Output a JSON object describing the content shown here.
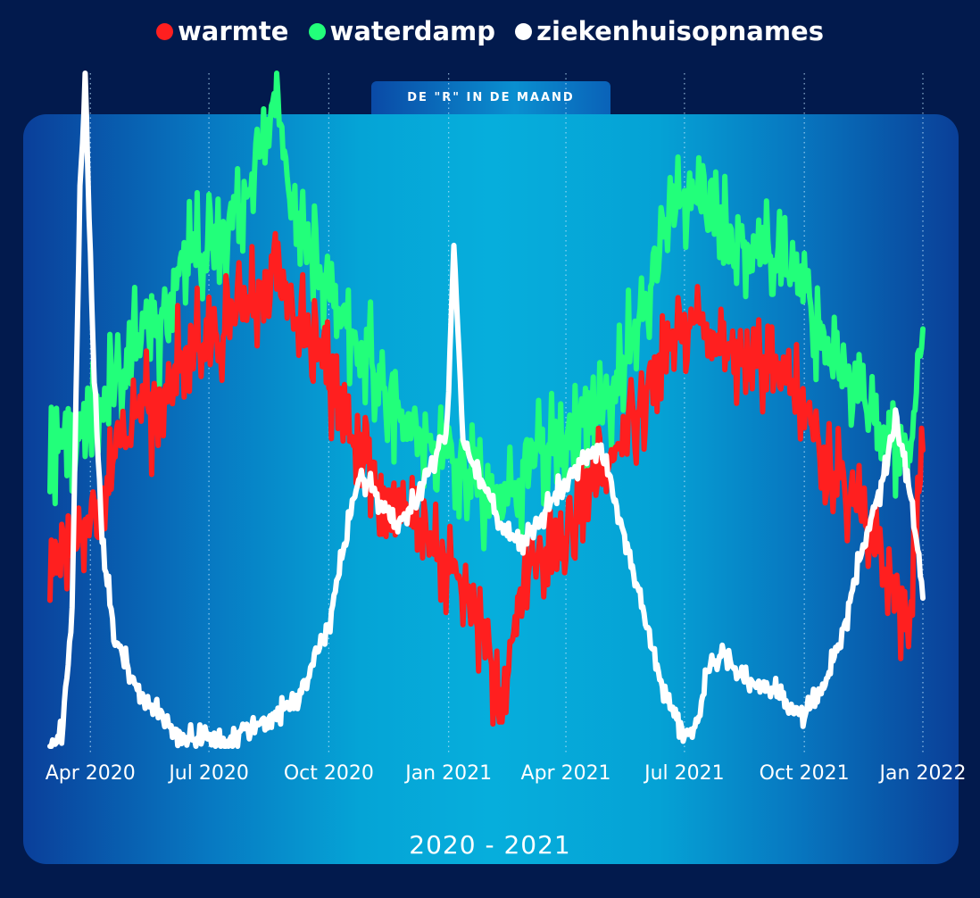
{
  "legend": {
    "items": [
      {
        "label": "warmte",
        "color": "#ff1f1f"
      },
      {
        "label": "waterdamp",
        "color": "#22ff7a"
      },
      {
        "label": "ziekenhuisopnames",
        "color": "#ffffff"
      }
    ]
  },
  "tab_label": "DE \"R\" IN DE MAAND",
  "period_label": "2020 - 2021",
  "chart_data": {
    "type": "line",
    "x_axis": {
      "type": "date",
      "range": [
        "2020-03-01",
        "2021-12-31"
      ],
      "ticks": [
        {
          "date": "2020-04-01",
          "label": "Apr 2020"
        },
        {
          "date": "2020-07-01",
          "label": "Jul 2020"
        },
        {
          "date": "2020-10-01",
          "label": "Oct 2020"
        },
        {
          "date": "2021-01-01",
          "label": "Jan 2021"
        },
        {
          "date": "2021-04-01",
          "label": "Apr 2021"
        },
        {
          "date": "2021-07-01",
          "label": "Jul 2021"
        },
        {
          "date": "2021-10-01",
          "label": "Oct 2021"
        },
        {
          "date": "2022-01-01",
          "label": "Jan 2022"
        }
      ],
      "gridlines": "dotted vertical at ticks"
    },
    "y_axis": {
      "visible": false,
      "range": [
        0,
        100
      ]
    },
    "series": [
      {
        "name": "warmte",
        "color": "#ff1f1f",
        "points": [
          [
            "2020-03-01",
            24
          ],
          [
            "2020-03-10",
            32
          ],
          [
            "2020-03-20",
            30
          ],
          [
            "2020-03-31",
            33
          ],
          [
            "2020-04-10",
            38
          ],
          [
            "2020-04-20",
            43
          ],
          [
            "2020-04-30",
            47
          ],
          [
            "2020-05-10",
            52
          ],
          [
            "2020-05-20",
            48
          ],
          [
            "2020-05-31",
            55
          ],
          [
            "2020-06-10",
            58
          ],
          [
            "2020-06-20",
            60
          ],
          [
            "2020-06-30",
            59
          ],
          [
            "2020-07-10",
            62
          ],
          [
            "2020-07-20",
            64
          ],
          [
            "2020-07-31",
            66
          ],
          [
            "2020-08-10",
            68
          ],
          [
            "2020-08-20",
            74
          ],
          [
            "2020-08-31",
            67
          ],
          [
            "2020-09-10",
            62
          ],
          [
            "2020-09-20",
            58
          ],
          [
            "2020-09-30",
            55
          ],
          [
            "2020-10-10",
            49
          ],
          [
            "2020-10-20",
            45
          ],
          [
            "2020-10-31",
            42
          ],
          [
            "2020-11-10",
            38
          ],
          [
            "2020-11-20",
            36
          ],
          [
            "2020-11-30",
            34
          ],
          [
            "2020-12-10",
            32
          ],
          [
            "2020-12-20",
            30
          ],
          [
            "2020-12-31",
            28
          ],
          [
            "2021-01-10",
            24
          ],
          [
            "2021-01-20",
            20
          ],
          [
            "2021-01-31",
            16
          ],
          [
            "2021-02-10",
            2
          ],
          [
            "2021-02-20",
            18
          ],
          [
            "2021-02-28",
            26
          ],
          [
            "2021-03-10",
            28
          ],
          [
            "2021-03-20",
            30
          ],
          [
            "2021-03-31",
            31
          ],
          [
            "2021-04-10",
            34
          ],
          [
            "2021-04-20",
            38
          ],
          [
            "2021-04-30",
            40
          ],
          [
            "2021-05-10",
            44
          ],
          [
            "2021-05-20",
            48
          ],
          [
            "2021-05-31",
            52
          ],
          [
            "2021-06-10",
            57
          ],
          [
            "2021-06-20",
            60
          ],
          [
            "2021-06-30",
            62
          ],
          [
            "2021-07-10",
            63
          ],
          [
            "2021-07-20",
            62
          ],
          [
            "2021-07-31",
            60
          ],
          [
            "2021-08-10",
            58
          ],
          [
            "2021-08-20",
            57
          ],
          [
            "2021-08-31",
            56
          ],
          [
            "2021-09-10",
            55
          ],
          [
            "2021-09-20",
            53
          ],
          [
            "2021-09-30",
            51
          ],
          [
            "2021-10-10",
            46
          ],
          [
            "2021-10-20",
            42
          ],
          [
            "2021-10-31",
            39
          ],
          [
            "2021-11-10",
            35
          ],
          [
            "2021-11-20",
            31
          ],
          [
            "2021-11-30",
            28
          ],
          [
            "2021-12-10",
            24
          ],
          [
            "2021-12-20",
            18
          ],
          [
            "2021-12-31",
            44
          ]
        ]
      },
      {
        "name": "waterdamp",
        "color": "#22ff7a",
        "points": [
          [
            "2020-03-01",
            40
          ],
          [
            "2020-03-10",
            47
          ],
          [
            "2020-03-20",
            45
          ],
          [
            "2020-03-31",
            48
          ],
          [
            "2020-04-10",
            50
          ],
          [
            "2020-04-20",
            54
          ],
          [
            "2020-04-30",
            57
          ],
          [
            "2020-05-10",
            62
          ],
          [
            "2020-05-20",
            60
          ],
          [
            "2020-05-31",
            66
          ],
          [
            "2020-06-10",
            72
          ],
          [
            "2020-06-20",
            74
          ],
          [
            "2020-06-30",
            73
          ],
          [
            "2020-07-10",
            76
          ],
          [
            "2020-07-20",
            79
          ],
          [
            "2020-07-31",
            83
          ],
          [
            "2020-08-10",
            88
          ],
          [
            "2020-08-20",
            97
          ],
          [
            "2020-08-31",
            84
          ],
          [
            "2020-09-10",
            77
          ],
          [
            "2020-09-20",
            72
          ],
          [
            "2020-09-30",
            68
          ],
          [
            "2020-10-10",
            63
          ],
          [
            "2020-10-20",
            60
          ],
          [
            "2020-10-31",
            58
          ],
          [
            "2020-11-10",
            54
          ],
          [
            "2020-11-20",
            51
          ],
          [
            "2020-11-30",
            49
          ],
          [
            "2020-12-10",
            47
          ],
          [
            "2020-12-20",
            45
          ],
          [
            "2020-12-31",
            43
          ],
          [
            "2021-01-10",
            42
          ],
          [
            "2021-01-20",
            40
          ],
          [
            "2021-01-31",
            38
          ],
          [
            "2021-02-10",
            34
          ],
          [
            "2021-02-20",
            38
          ],
          [
            "2021-02-28",
            41
          ],
          [
            "2021-03-10",
            43
          ],
          [
            "2021-03-20",
            45
          ],
          [
            "2021-03-31",
            46
          ],
          [
            "2021-04-10",
            48
          ],
          [
            "2021-04-20",
            50
          ],
          [
            "2021-04-30",
            52
          ],
          [
            "2021-05-10",
            55
          ],
          [
            "2021-05-20",
            59
          ],
          [
            "2021-05-31",
            64
          ],
          [
            "2021-06-10",
            72
          ],
          [
            "2021-06-20",
            80
          ],
          [
            "2021-06-30",
            82
          ],
          [
            "2021-07-10",
            81
          ],
          [
            "2021-07-20",
            80
          ],
          [
            "2021-07-31",
            78
          ],
          [
            "2021-08-10",
            76
          ],
          [
            "2021-08-20",
            74
          ],
          [
            "2021-08-31",
            73
          ],
          [
            "2021-09-10",
            72
          ],
          [
            "2021-09-20",
            70
          ],
          [
            "2021-09-30",
            68
          ],
          [
            "2021-10-10",
            64
          ],
          [
            "2021-10-20",
            60
          ],
          [
            "2021-10-31",
            57
          ],
          [
            "2021-11-10",
            53
          ],
          [
            "2021-11-20",
            50
          ],
          [
            "2021-11-30",
            47
          ],
          [
            "2021-12-10",
            44
          ],
          [
            "2021-12-20",
            40
          ],
          [
            "2021-12-31",
            62
          ]
        ]
      },
      {
        "name": "ziekenhuisopnames",
        "color": "#ffffff",
        "points": [
          [
            "2020-03-01",
            0
          ],
          [
            "2020-03-10",
            2
          ],
          [
            "2020-03-18",
            20
          ],
          [
            "2020-03-24",
            82
          ],
          [
            "2020-03-28",
            100
          ],
          [
            "2020-04-03",
            60
          ],
          [
            "2020-04-10",
            30
          ],
          [
            "2020-04-20",
            16
          ],
          [
            "2020-05-01",
            11
          ],
          [
            "2020-05-15",
            6
          ],
          [
            "2020-06-01",
            3
          ],
          [
            "2020-06-15",
            1
          ],
          [
            "2020-07-01",
            1
          ],
          [
            "2020-07-15",
            1
          ],
          [
            "2020-08-01",
            3
          ],
          [
            "2020-08-15",
            4
          ],
          [
            "2020-09-01",
            6
          ],
          [
            "2020-09-15",
            10
          ],
          [
            "2020-10-01",
            18
          ],
          [
            "2020-10-15",
            32
          ],
          [
            "2020-10-25",
            40
          ],
          [
            "2020-11-05",
            38
          ],
          [
            "2020-11-20",
            33
          ],
          [
            "2020-12-05",
            36
          ],
          [
            "2020-12-20",
            42
          ],
          [
            "2020-12-31",
            48
          ],
          [
            "2021-01-05",
            75
          ],
          [
            "2021-01-12",
            45
          ],
          [
            "2021-01-25",
            40
          ],
          [
            "2021-02-10",
            33
          ],
          [
            "2021-02-25",
            30
          ],
          [
            "2021-03-10",
            33
          ],
          [
            "2021-03-25",
            38
          ],
          [
            "2021-04-10",
            42
          ],
          [
            "2021-04-25",
            44
          ],
          [
            "2021-05-05",
            40
          ],
          [
            "2021-05-15",
            32
          ],
          [
            "2021-05-31",
            20
          ],
          [
            "2021-06-15",
            8
          ],
          [
            "2021-06-30",
            2
          ],
          [
            "2021-07-10",
            3
          ],
          [
            "2021-07-20",
            12
          ],
          [
            "2021-08-01",
            14
          ],
          [
            "2021-08-15",
            10
          ],
          [
            "2021-09-01",
            9
          ],
          [
            "2021-09-15",
            7
          ],
          [
            "2021-10-01",
            5
          ],
          [
            "2021-10-15",
            8
          ],
          [
            "2021-11-01",
            18
          ],
          [
            "2021-11-15",
            30
          ],
          [
            "2021-12-01",
            40
          ],
          [
            "2021-12-10",
            48
          ],
          [
            "2021-12-20",
            40
          ],
          [
            "2021-12-31",
            22
          ]
        ]
      }
    ]
  }
}
